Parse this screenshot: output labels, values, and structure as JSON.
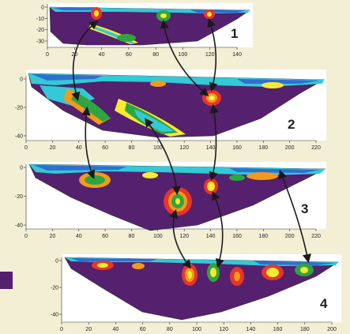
{
  "colors": {
    "background": "#f3efd5",
    "body": "#55206e",
    "legend_swatch": "#55206e",
    "red": "#e8352a",
    "orange": "#f39a1c",
    "yellow": "#f7ea2f",
    "green": "#2fa541",
    "cyan": "#33c9d6",
    "blue": "#2f6fd0",
    "arrow": "#1a1a1a"
  },
  "panels": [
    {
      "label": "1",
      "x_ticks": [
        "0",
        "20",
        "40",
        "60",
        "80",
        "100",
        "120",
        "140"
      ],
      "y_ticks": [
        "0",
        "-10",
        "-20",
        "-30"
      ]
    },
    {
      "label": "2",
      "x_ticks": [
        "0",
        "20",
        "40",
        "60",
        "80",
        "100",
        "120",
        "140",
        "160",
        "180",
        "200",
        "220"
      ],
      "y_ticks": [
        "0",
        "-20",
        "-40"
      ]
    },
    {
      "label": "3",
      "x_ticks": [
        "0",
        "20",
        "40",
        "60",
        "80",
        "100",
        "120",
        "140",
        "160",
        "180",
        "200",
        "220"
      ],
      "y_ticks": [
        "0",
        "-20",
        "-40"
      ]
    },
    {
      "label": "4",
      "x_ticks": [
        "0",
        "20",
        "40",
        "60",
        "80",
        "100",
        "120",
        "140",
        "160",
        "180",
        "200"
      ],
      "y_ticks": [
        "0",
        "-20",
        "-40"
      ]
    }
  ]
}
